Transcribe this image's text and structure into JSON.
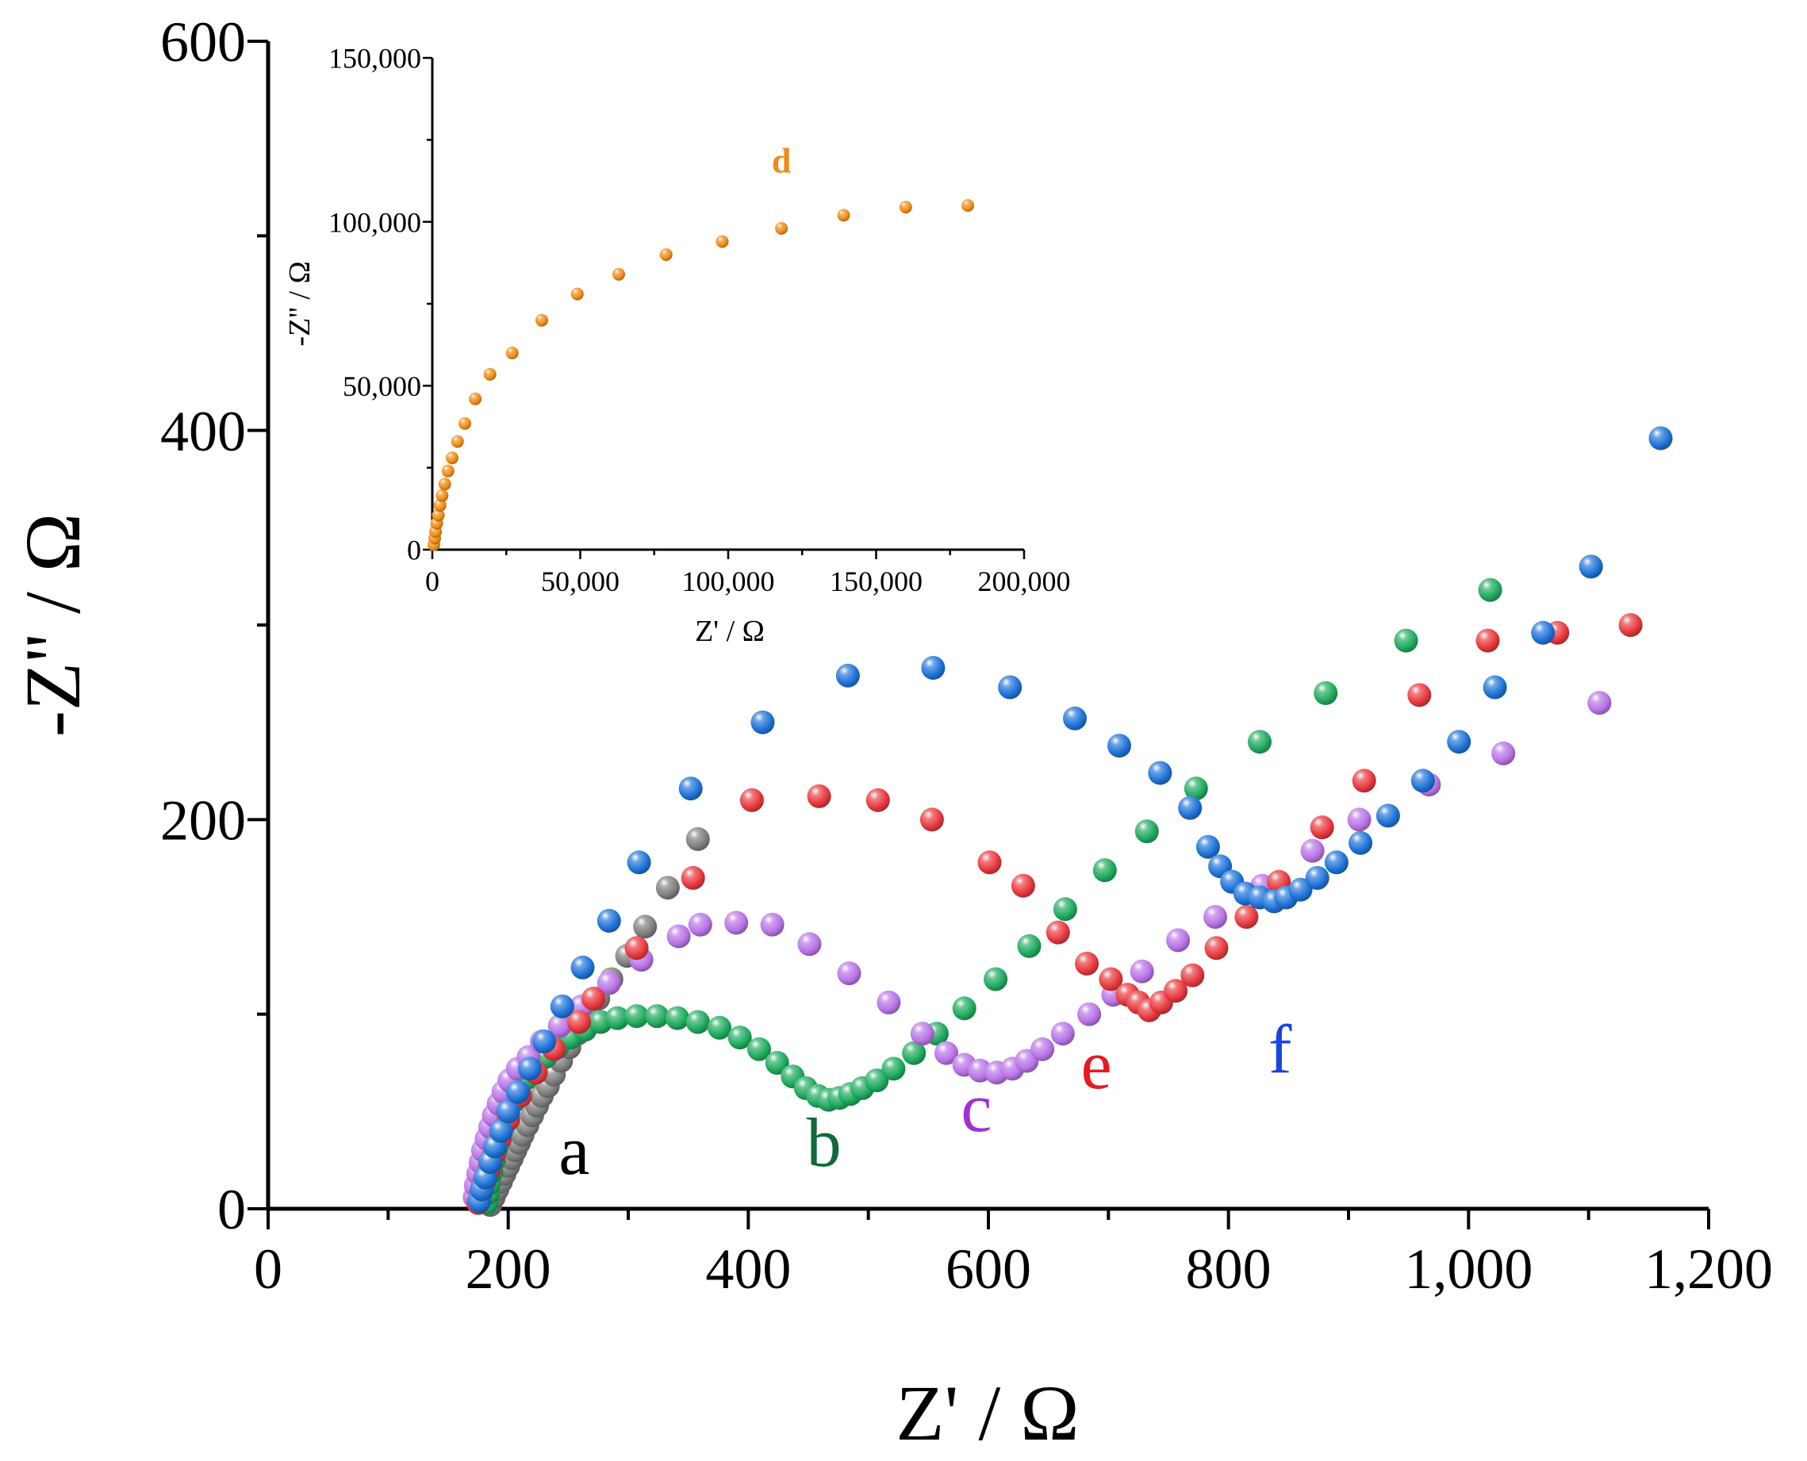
{
  "colors": {
    "a": "#7f7f7f",
    "b": "#1faa5e",
    "c": "#b873e6",
    "e": "#e8383d",
    "f": "#1e73d8",
    "d": "#f08a14",
    "label_a": "#000000",
    "label_b": "#0f6a3c",
    "label_c": "#a22fd6",
    "label_e": "#e8191f",
    "label_f": "#1745de"
  },
  "chart_data": [
    {
      "type": "scatter",
      "title": "",
      "xlabel": "Z' / Ω",
      "ylabel": "-Z'' / Ω",
      "xlim": [
        0,
        1200
      ],
      "ylim": [
        0,
        600
      ],
      "x_ticks": [
        0,
        200,
        400,
        600,
        800,
        1000,
        1200
      ],
      "x_tick_labels": [
        "0",
        "200",
        "400",
        "600",
        "800",
        "1,000",
        "1,200"
      ],
      "y_ticks": [
        0,
        200,
        400,
        600
      ],
      "y_tick_labels": [
        "0",
        "200",
        "400",
        "600"
      ],
      "series": [
        {
          "name": "a",
          "label": "a",
          "color_key": "a",
          "label_color_key": "label_a",
          "label_pos": [
            255,
            18
          ],
          "x": [
            185,
            188,
            191,
            194,
            197,
            200,
            203,
            206,
            209,
            212,
            216,
            220,
            224,
            228,
            233,
            238,
            244,
            251,
            258,
            266,
            275,
            286,
            299,
            314,
            333,
            358
          ],
          "y": [
            2,
            6,
            10,
            14,
            18,
            22,
            26,
            30,
            34,
            38,
            43,
            48,
            53,
            58,
            63,
            69,
            76,
            83,
            90,
            98,
            108,
            118,
            130,
            145,
            165,
            190
          ]
        },
        {
          "name": "b",
          "label": "b",
          "color_key": "b",
          "label_color_key": "label_b",
          "label_pos": [
            463,
            22
          ],
          "x": [
            182,
            183,
            184,
            186,
            188,
            190,
            193,
            196,
            200,
            204,
            209,
            215,
            222,
            231,
            241,
            252,
            264,
            277,
            291,
            307,
            324,
            341,
            358,
            376,
            393,
            409,
            424,
            437,
            448,
            458,
            467,
            476,
            485,
            495,
            507,
            521,
            538,
            557,
            580,
            606,
            634,
            664,
            697,
            732,
            773,
            826,
            881,
            948,
            1018
          ],
          "y": [
            3,
            8,
            13,
            19,
            25,
            31,
            37,
            43,
            49,
            55,
            61,
            67,
            73,
            78,
            83,
            88,
            92,
            96,
            98,
            99,
            99,
            98,
            96,
            93,
            88,
            82,
            75,
            68,
            62,
            58,
            56,
            57,
            59,
            62,
            66,
            72,
            80,
            90,
            103,
            118,
            135,
            154,
            174,
            194,
            216,
            240,
            265,
            292,
            318
          ]
        },
        {
          "name": "c",
          "label": "c",
          "color_key": "c",
          "label_color_key": "label_c",
          "label_pos": [
            590,
            40
          ],
          "x": [
            172,
            173,
            175,
            177,
            179,
            182,
            185,
            188,
            192,
            196,
            201,
            208,
            217,
            228,
            243,
            261,
            284,
            311,
            342,
            360,
            390,
            420,
            451,
            484,
            517,
            545,
            565,
            580,
            593,
            607,
            620,
            632,
            645,
            662,
            684,
            704,
            728,
            758,
            789,
            828,
            870,
            909,
            967,
            1029,
            1109
          ],
          "y": [
            6,
            12,
            18,
            24,
            30,
            36,
            42,
            48,
            54,
            60,
            66,
            72,
            78,
            86,
            94,
            104,
            116,
            128,
            140,
            146,
            147,
            146,
            136,
            121,
            106,
            90,
            80,
            74,
            71,
            70,
            72,
            76,
            82,
            90,
            100,
            110,
            122,
            138,
            150,
            166,
            184,
            200,
            218,
            234,
            260
          ]
        },
        {
          "name": "e",
          "label": "e",
          "color_key": "e",
          "label_color_key": "label_e",
          "label_pos": [
            690,
            62
          ],
          "x": [
            175,
            177,
            180,
            184,
            188,
            193,
            200,
            210,
            223,
            238,
            259,
            271,
            307,
            354,
            403,
            459,
            508,
            553,
            601,
            629,
            658,
            682,
            702,
            716,
            725,
            734,
            744,
            756,
            770,
            790,
            815,
            842,
            878,
            913,
            959,
            1016,
            1074,
            1135
          ],
          "y": [
            3,
            8,
            14,
            20,
            28,
            36,
            46,
            58,
            70,
            82,
            96,
            108,
            134,
            170,
            210,
            212,
            210,
            200,
            178,
            166,
            142,
            126,
            118,
            110,
            106,
            102,
            106,
            112,
            120,
            134,
            150,
            168,
            196,
            220,
            264,
            292,
            296,
            300
          ]
        },
        {
          "name": "f",
          "label": "f",
          "color_key": "f",
          "label_color_key": "label_f",
          "label_pos": [
            843,
            70
          ],
          "x": [
            176,
            178,
            181,
            185,
            189,
            194,
            200,
            208,
            218,
            230,
            245,
            262,
            284,
            309,
            352,
            412,
            483,
            554,
            618,
            672,
            709,
            743,
            768,
            783,
            793,
            803,
            814,
            826,
            838,
            848,
            860,
            874,
            890,
            910,
            933,
            962,
            992,
            1022,
            1062,
            1102,
            1160
          ],
          "y": [
            4,
            10,
            16,
            24,
            32,
            40,
            50,
            60,
            72,
            86,
            104,
            124,
            148,
            178,
            216,
            250,
            274,
            278,
            268,
            252,
            238,
            224,
            206,
            186,
            176,
            168,
            162,
            160,
            158,
            160,
            164,
            170,
            178,
            188,
            202,
            220,
            240,
            268,
            296,
            330,
            396
          ]
        }
      ],
      "annotations": [
        "a",
        "b",
        "c",
        "e",
        "f"
      ]
    },
    {
      "type": "scatter",
      "title": "",
      "xlabel": "Z' / Ω",
      "ylabel": "-Z'' / Ω",
      "xlim": [
        0,
        200000
      ],
      "ylim": [
        0,
        150000
      ],
      "x_ticks": [
        0,
        50000,
        100000,
        150000,
        200000
      ],
      "x_tick_labels": [
        "0",
        "50,000",
        "100,000",
        "150,000",
        "200,000"
      ],
      "y_ticks": [
        0,
        50000,
        100000,
        150000
      ],
      "y_tick_labels": [
        "0",
        "50,000",
        "100,000",
        "150,000"
      ],
      "series": [
        {
          "name": "d",
          "label": "d",
          "color_key": "d",
          "label_color_key": "d",
          "label_pos": [
            118000,
            115000
          ],
          "x": [
            500,
            800,
            1100,
            1500,
            2000,
            2600,
            3300,
            4200,
            5300,
            6700,
            8500,
            11000,
            14500,
            19500,
            27000,
            37000,
            49000,
            63000,
            79000,
            98000,
            118000,
            139000,
            160000,
            181000
          ],
          "y": [
            1500,
            3500,
            5500,
            8000,
            10500,
            13500,
            16500,
            20000,
            24000,
            28000,
            33000,
            38500,
            46000,
            53500,
            60000,
            70000,
            78000,
            84000,
            90000,
            94000,
            98000,
            102000,
            104500,
            105000
          ]
        }
      ],
      "annotations": [
        "d"
      ]
    }
  ]
}
